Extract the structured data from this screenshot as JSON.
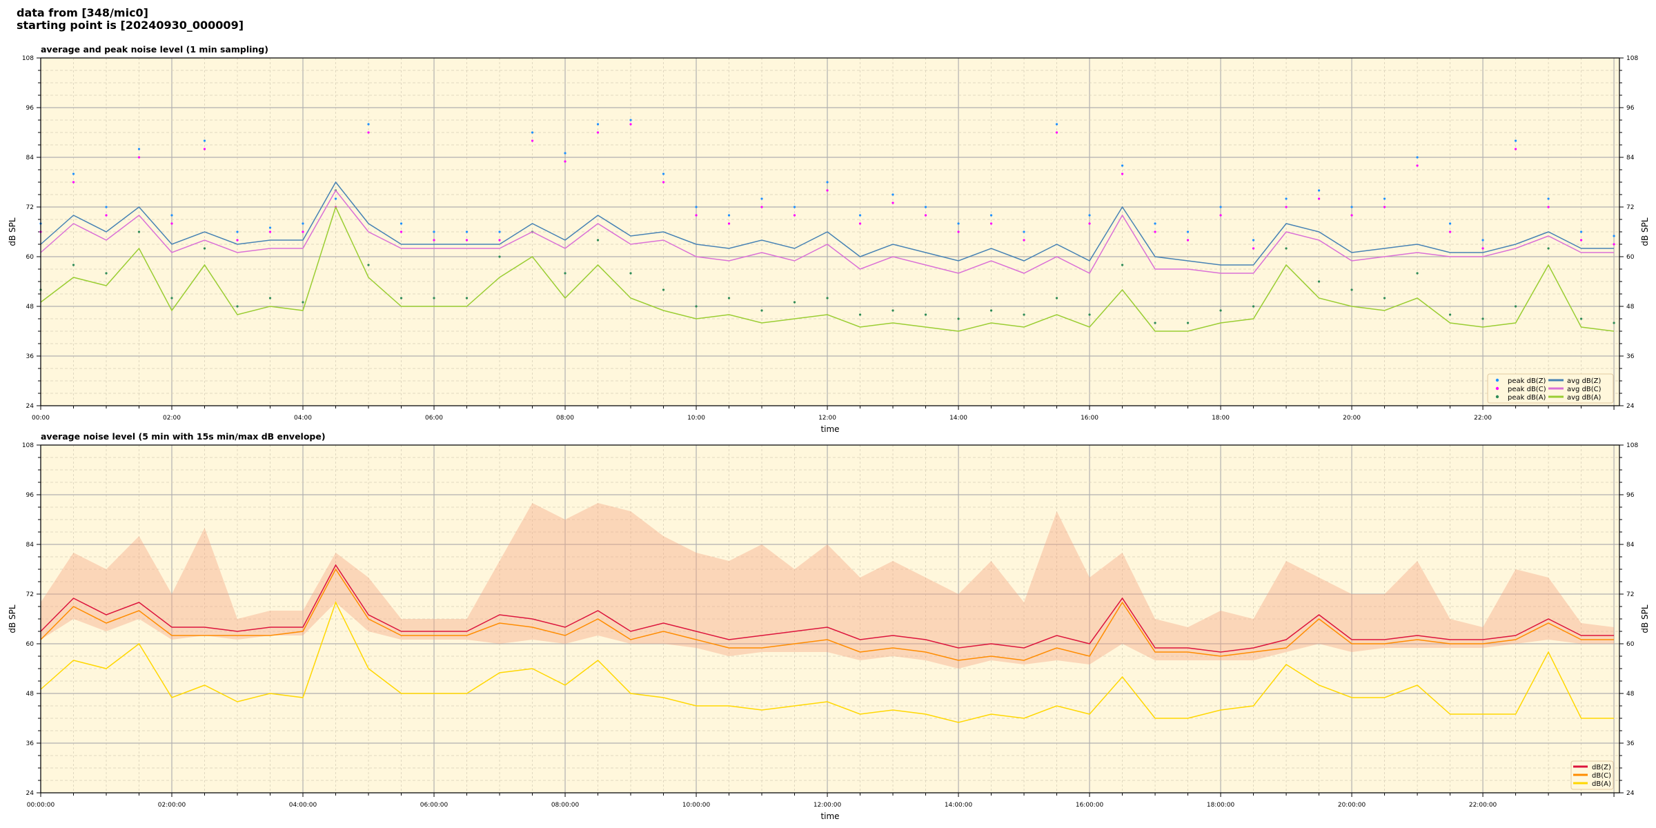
{
  "suptitle": {
    "line1": "data from [348/mic0]",
    "line2": "starting point is [20240930_000009]"
  },
  "chart_data": [
    {
      "type": "line",
      "title": "average and peak noise level (1 min sampling)",
      "xlabel": "time",
      "ylabel": "dB SPL",
      "xlim": [
        "00:00",
        "24:05"
      ],
      "ylim": [
        24,
        108
      ],
      "yticks": [
        24,
        36,
        48,
        60,
        72,
        84,
        96,
        108
      ],
      "xtick_labels": [
        "00:00",
        "02:00",
        "04:00",
        "06:00",
        "08:00",
        "10:00",
        "12:00",
        "14:00",
        "16:00",
        "18:00",
        "20:00",
        "22:00"
      ],
      "grid": true,
      "background": "#fff7dc",
      "legend_placement": "lower-right",
      "x_step_minutes": 30,
      "series": [
        {
          "name": "peak dB(Z)",
          "kind": "scatter",
          "color": "#1e90ff",
          "values": [
            68,
            80,
            72,
            86,
            70,
            88,
            66,
            67,
            68,
            74,
            92,
            68,
            66,
            66,
            66,
            90,
            85,
            92,
            93,
            80,
            72,
            70,
            74,
            72,
            78,
            70,
            75,
            72,
            68,
            70,
            66,
            92,
            70,
            82,
            68,
            66,
            72,
            64,
            74,
            76,
            72,
            74,
            84,
            68,
            64,
            88,
            74,
            66,
            65
          ]
        },
        {
          "name": "peak dB(C)",
          "kind": "scatter",
          "color": "#ff00ff",
          "values": [
            66,
            78,
            70,
            84,
            68,
            86,
            64,
            66,
            66,
            72,
            90,
            66,
            64,
            64,
            64,
            88,
            83,
            90,
            92,
            78,
            70,
            68,
            72,
            70,
            76,
            68,
            73,
            70,
            66,
            68,
            64,
            90,
            68,
            80,
            66,
            64,
            70,
            62,
            72,
            74,
            70,
            72,
            82,
            66,
            62,
            86,
            72,
            64,
            63
          ]
        },
        {
          "name": "peak dB(A)",
          "kind": "scatter",
          "color": "#2e8b57",
          "values": [
            52,
            58,
            56,
            66,
            50,
            62,
            48,
            50,
            49,
            76,
            58,
            50,
            50,
            50,
            60,
            66,
            56,
            64,
            56,
            52,
            48,
            50,
            47,
            49,
            50,
            46,
            47,
            46,
            45,
            47,
            46,
            50,
            46,
            58,
            44,
            44,
            47,
            48,
            62,
            54,
            52,
            50,
            56,
            46,
            45,
            48,
            62,
            45,
            44
          ]
        },
        {
          "name": "avg dB(Z)",
          "kind": "line",
          "color": "#4682b4",
          "values": [
            63,
            70,
            66,
            72,
            63,
            66,
            63,
            64,
            64,
            78,
            68,
            63,
            63,
            63,
            63,
            68,
            64,
            70,
            65,
            66,
            63,
            62,
            64,
            62,
            66,
            60,
            63,
            61,
            59,
            62,
            59,
            63,
            59,
            72,
            60,
            59,
            58,
            58,
            68,
            66,
            61,
            62,
            63,
            61,
            61,
            63,
            66,
            62,
            62
          ]
        },
        {
          "name": "avg dB(C)",
          "kind": "line",
          "color": "#da70d6",
          "values": [
            61,
            68,
            64,
            70,
            61,
            64,
            61,
            62,
            62,
            76,
            66,
            62,
            62,
            62,
            62,
            66,
            62,
            68,
            63,
            64,
            60,
            59,
            61,
            59,
            63,
            57,
            60,
            58,
            56,
            59,
            56,
            60,
            56,
            70,
            57,
            57,
            56,
            56,
            66,
            64,
            59,
            60,
            61,
            60,
            60,
            62,
            65,
            61,
            61
          ]
        },
        {
          "name": "avg dB(A)",
          "kind": "line",
          "color": "#9acd32",
          "values": [
            49,
            55,
            53,
            62,
            47,
            58,
            46,
            48,
            47,
            72,
            55,
            48,
            48,
            48,
            55,
            60,
            50,
            58,
            50,
            47,
            45,
            46,
            44,
            45,
            46,
            43,
            44,
            43,
            42,
            44,
            43,
            46,
            43,
            52,
            42,
            42,
            44,
            45,
            58,
            50,
            48,
            47,
            50,
            44,
            43,
            44,
            58,
            43,
            42
          ]
        }
      ]
    },
    {
      "type": "area",
      "title": "average noise level (5 min with 15s min/max dB envelope)",
      "xlabel": "time",
      "ylabel": "dB SPL",
      "xlim": [
        "00:00:00",
        "24:05:00"
      ],
      "ylim": [
        24,
        108
      ],
      "yticks": [
        24,
        36,
        48,
        60,
        72,
        84,
        96,
        108
      ],
      "xtick_labels": [
        "00:00:00",
        "02:00:00",
        "04:00:00",
        "06:00:00",
        "08:00:00",
        "10:00:00",
        "12:00:00",
        "14:00:00",
        "16:00:00",
        "18:00:00",
        "20:00:00",
        "22:00:00"
      ],
      "grid": true,
      "background": "#fff7dc",
      "legend_placement": "lower-right",
      "x_step_minutes": 30,
      "envelope": {
        "color": "#f4a582",
        "max": [
          70,
          82,
          78,
          86,
          72,
          88,
          66,
          68,
          68,
          82,
          76,
          66,
          66,
          66,
          80,
          94,
          90,
          94,
          92,
          86,
          82,
          80,
          84,
          78,
          84,
          76,
          80,
          76,
          72,
          80,
          70,
          92,
          76,
          82,
          66,
          64,
          68,
          66,
          80,
          76,
          72,
          72,
          80,
          66,
          64,
          78,
          76,
          65,
          64
        ],
        "min": [
          61,
          66,
          63,
          66,
          61,
          62,
          61,
          62,
          62,
          70,
          63,
          61,
          61,
          61,
          60,
          61,
          60,
          62,
          60,
          60,
          59,
          57,
          58,
          58,
          58,
          56,
          57,
          56,
          54,
          56,
          55,
          56,
          55,
          60,
          56,
          56,
          56,
          56,
          58,
          60,
          58,
          59,
          59,
          59,
          59,
          60,
          61,
          60,
          60
        ]
      },
      "series": [
        {
          "name": "dB(Z)",
          "color": "#dc143c",
          "values": [
            63,
            71,
            67,
            70,
            64,
            64,
            63,
            64,
            64,
            79,
            67,
            63,
            63,
            63,
            67,
            66,
            64,
            68,
            63,
            65,
            63,
            61,
            62,
            63,
            64,
            61,
            62,
            61,
            59,
            60,
            59,
            62,
            60,
            71,
            59,
            59,
            58,
            59,
            61,
            67,
            61,
            61,
            62,
            61,
            61,
            62,
            66,
            62,
            62
          ]
        },
        {
          "name": "dB(C)",
          "color": "#ff8c00",
          "values": [
            61,
            69,
            65,
            68,
            62,
            62,
            62,
            62,
            63,
            78,
            66,
            62,
            62,
            62,
            65,
            64,
            62,
            66,
            61,
            63,
            61,
            59,
            59,
            60,
            61,
            58,
            59,
            58,
            56,
            57,
            56,
            59,
            57,
            70,
            58,
            58,
            57,
            58,
            59,
            66,
            60,
            60,
            61,
            60,
            60,
            61,
            65,
            61,
            61
          ]
        },
        {
          "name": "dB(A)",
          "color": "#ffd700",
          "values": [
            49,
            56,
            54,
            60,
            47,
            50,
            46,
            48,
            47,
            70,
            54,
            48,
            48,
            48,
            53,
            54,
            50,
            56,
            48,
            47,
            45,
            45,
            44,
            45,
            46,
            43,
            44,
            43,
            41,
            43,
            42,
            45,
            43,
            52,
            42,
            42,
            44,
            45,
            55,
            50,
            47,
            47,
            50,
            43,
            43,
            43,
            58,
            42,
            42
          ]
        }
      ]
    }
  ]
}
